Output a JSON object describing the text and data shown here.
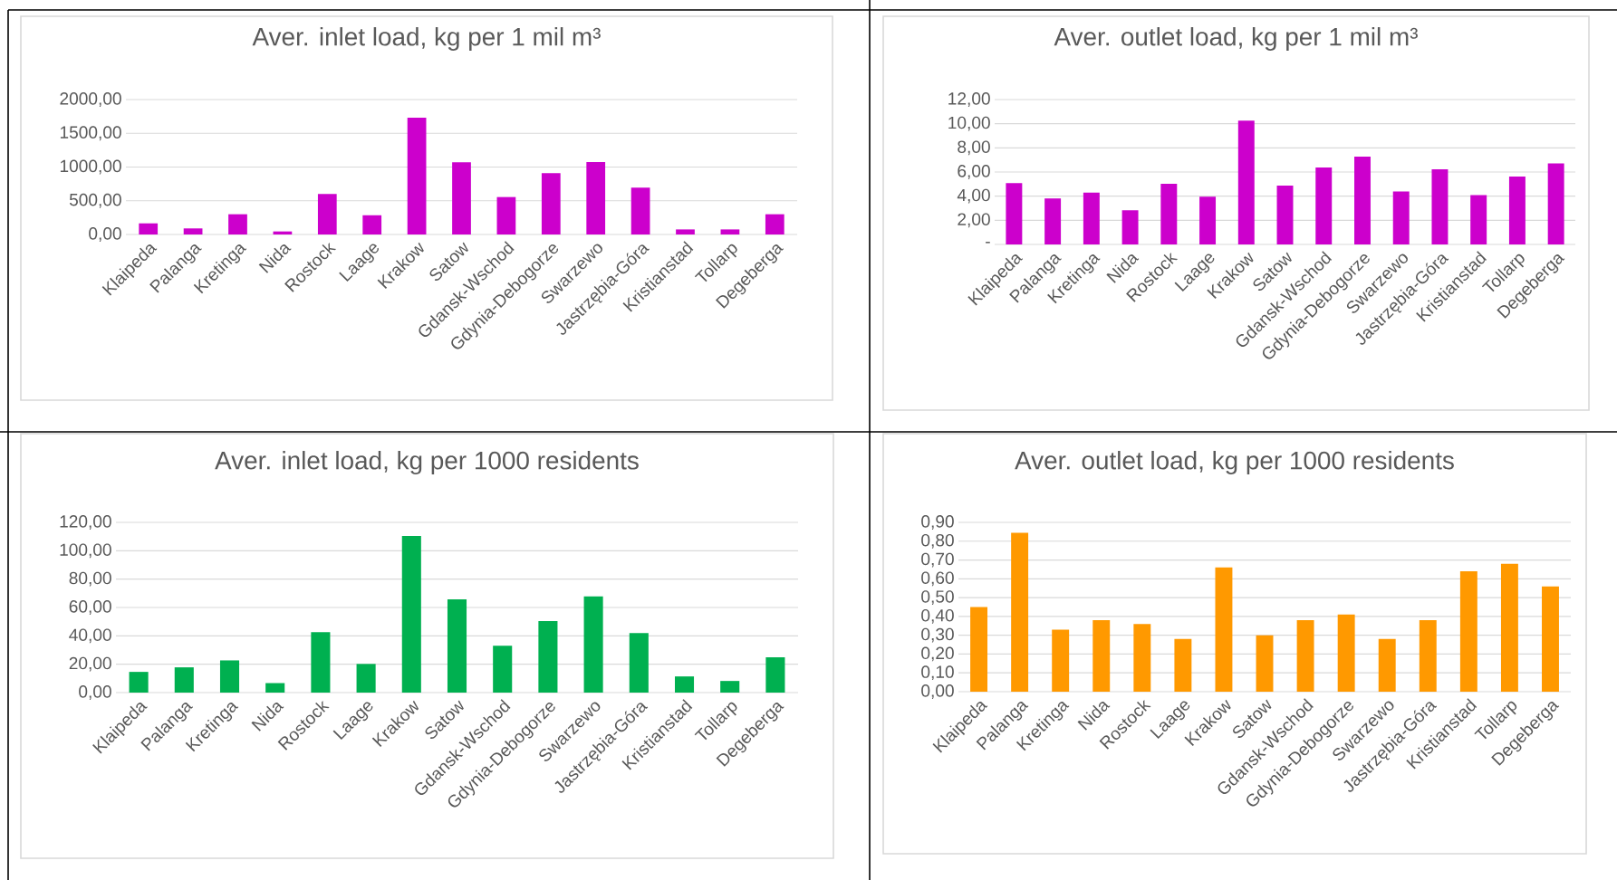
{
  "chart_data": [
    {
      "type": "bar",
      "title": "Aver. inlet load, kg per 1 mil m³",
      "categories": [
        "Klaipeda",
        "Palanga",
        "Kretinga",
        "Nida",
        "Rostock",
        "Laage",
        "Krakow",
        "Satow",
        "Gdansk-Wschod",
        "Gdynia-Debogorze",
        "Swarzewo",
        "Jastrzębia-Góra",
        "Kristianstad",
        "Tollarp",
        "Degeberga"
      ],
      "values": [
        165,
        90,
        300,
        45,
        600,
        285,
        1730,
        1070,
        555,
        910,
        1075,
        695,
        75,
        75,
        300
      ],
      "color": "#cc00cc",
      "ylim": [
        0,
        2000
      ],
      "yticks": [
        {
          "value": 0,
          "label": "0,00"
        },
        {
          "value": 500,
          "label": "500,00"
        },
        {
          "value": 1000,
          "label": "1000,00"
        },
        {
          "value": 1500,
          "label": "1500,00"
        },
        {
          "value": 2000,
          "label": "2000,00"
        }
      ],
      "grid": "y"
    },
    {
      "type": "bar",
      "title": "Aver. outlet load, kg per 1 mil m³",
      "categories": [
        "Klaipeda",
        "Palanga",
        "Kretinga",
        "Nida",
        "Rostock",
        "Laage",
        "Krakow",
        "Satow",
        "Gdansk-Wschod",
        "Gdynia-Debogorze",
        "Swarzewo",
        "Jastrzębia-Góra",
        "Kristianstad",
        "Tollarp",
        "Degeberga"
      ],
      "values": [
        5.09,
        3.81,
        4.3,
        2.83,
        5.02,
        3.96,
        10.26,
        4.87,
        6.38,
        7.28,
        4.38,
        6.23,
        4.08,
        5.62,
        6.72
      ],
      "color": "#cc00cc",
      "ylim": [
        0,
        12
      ],
      "yticks": [
        {
          "value": 0,
          "label": "-"
        },
        {
          "value": 2,
          "label": "2,00"
        },
        {
          "value": 4,
          "label": "4,00"
        },
        {
          "value": 6,
          "label": "6,00"
        },
        {
          "value": 8,
          "label": "8,00"
        },
        {
          "value": 10,
          "label": "10,00"
        },
        {
          "value": 12,
          "label": "12,00"
        }
      ],
      "grid": "y"
    },
    {
      "type": "bar",
      "title": "Aver. inlet load, kg per 1000 residents",
      "categories": [
        "Klaipeda",
        "Palanga",
        "Kretinga",
        "Nida",
        "Rostock",
        "Laage",
        "Krakow",
        "Satow",
        "Gdansk-Wschod",
        "Gdynia-Debogorze",
        "Swarzewo",
        "Jastrzębia-Góra",
        "Kristianstad",
        "Tollarp",
        "Degeberga"
      ],
      "values": [
        14.6,
        17.8,
        22.7,
        6.7,
        42.6,
        20.2,
        110.5,
        65.7,
        33.0,
        50.4,
        67.8,
        41.9,
        11.4,
        8.2,
        24.9
      ],
      "color": "#00b050",
      "ylim": [
        0,
        120
      ],
      "yticks": [
        {
          "value": 0,
          "label": "0,00"
        },
        {
          "value": 20,
          "label": "20,00"
        },
        {
          "value": 40,
          "label": "40,00"
        },
        {
          "value": 60,
          "label": "60,00"
        },
        {
          "value": 80,
          "label": "80,00"
        },
        {
          "value": 100,
          "label": "100,00"
        },
        {
          "value": 120,
          "label": "120,00"
        }
      ],
      "grid": "y"
    },
    {
      "type": "bar",
      "title": "Aver. outlet load, kg per 1000 residents",
      "categories": [
        "Klaipeda",
        "Palanga",
        "Kretinga",
        "Nida",
        "Rostock",
        "Laage",
        "Krakow",
        "Satow",
        "Gdansk-Wschod",
        "Gdynia-Debogorze",
        "Swarzewo",
        "Jastrzębia-Góra",
        "Kristianstad",
        "Tollarp",
        "Degeberga"
      ],
      "values": [
        0.45,
        0.845,
        0.33,
        0.38,
        0.36,
        0.28,
        0.66,
        0.3,
        0.38,
        0.41,
        0.28,
        0.38,
        0.64,
        0.68,
        0.56
      ],
      "color": "#ff9900",
      "ylim": [
        0,
        0.9
      ],
      "yticks": [
        {
          "value": 0,
          "label": "0,00"
        },
        {
          "value": 0.1,
          "label": "0,10"
        },
        {
          "value": 0.2,
          "label": "0,20"
        },
        {
          "value": 0.3,
          "label": "0,30"
        },
        {
          "value": 0.4,
          "label": "0,40"
        },
        {
          "value": 0.5,
          "label": "0,50"
        },
        {
          "value": 0.6,
          "label": "0,60"
        },
        {
          "value": 0.7,
          "label": "0,70"
        },
        {
          "value": 0.8,
          "label": "0,80"
        },
        {
          "value": 0.9,
          "label": "0,90"
        }
      ],
      "grid": "y"
    }
  ]
}
